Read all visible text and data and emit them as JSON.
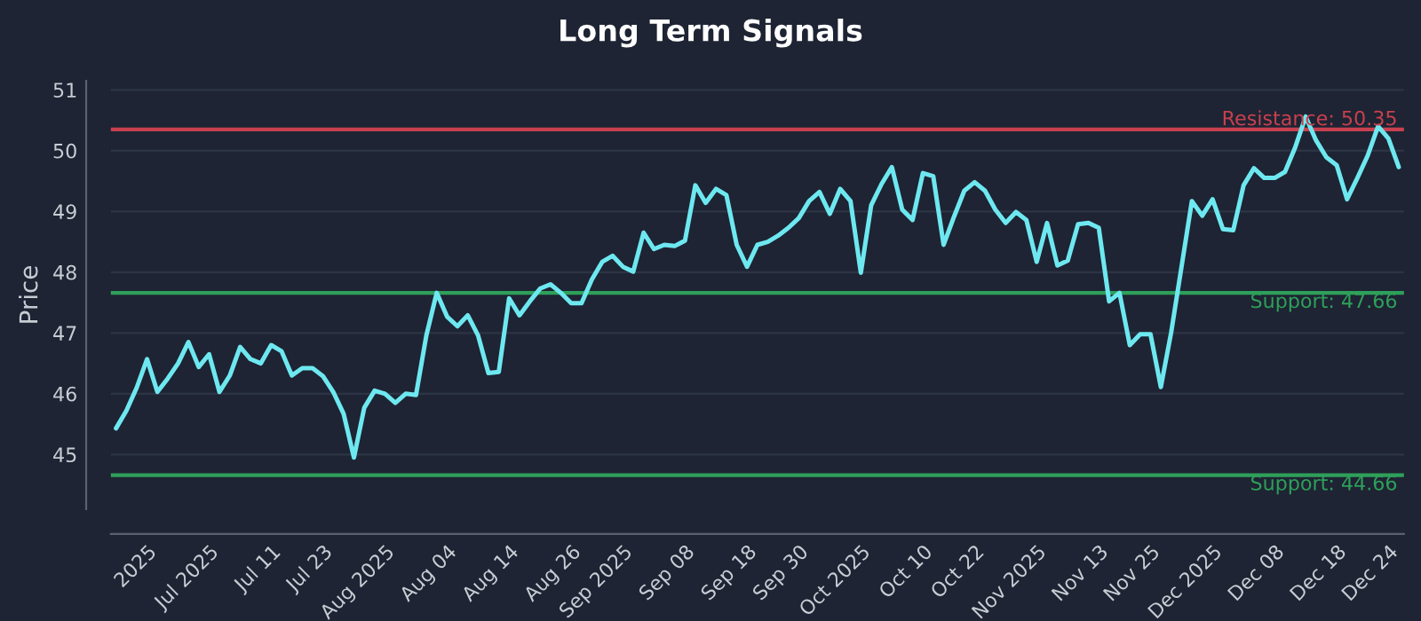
{
  "chart_data": {
    "type": "line",
    "title": "Long Term Signals",
    "ylabel": "Price",
    "categories": [
      null,
      null,
      null,
      "2025",
      null,
      null,
      null,
      null,
      null,
      "Jul 2025",
      null,
      null,
      null,
      null,
      null,
      "Jul 11",
      null,
      null,
      null,
      null,
      "Jul 23",
      null,
      null,
      null,
      null,
      null,
      "Aug 2025",
      null,
      null,
      null,
      null,
      null,
      "Aug 04",
      null,
      null,
      null,
      null,
      null,
      "Aug 14",
      null,
      null,
      null,
      null,
      null,
      "Aug 26",
      null,
      null,
      null,
      null,
      "Sep 2025",
      null,
      null,
      null,
      null,
      null,
      "Sep 08",
      null,
      null,
      null,
      null,
      null,
      "Sep 18",
      null,
      null,
      null,
      null,
      "Sep 30",
      null,
      null,
      null,
      null,
      null,
      "Oct 2025",
      null,
      null,
      null,
      null,
      null,
      "Oct 10",
      null,
      null,
      null,
      null,
      "Oct 22",
      null,
      null,
      null,
      null,
      null,
      "Nov 2025",
      null,
      null,
      null,
      null,
      null,
      "Nov 13",
      null,
      null,
      null,
      null,
      "Nov 25",
      null,
      null,
      null,
      null,
      null,
      "Dec 2025",
      null,
      null,
      null,
      null,
      null,
      "Dec 08",
      null,
      null,
      null,
      null,
      null,
      "Dec 18",
      null,
      null,
      null,
      null,
      "Dec 24",
      null
    ],
    "series": [
      {
        "color": "#6ee8f0",
        "values": [
          45.43,
          45.72,
          46.1,
          46.57,
          46.03,
          46.25,
          46.5,
          46.85,
          46.44,
          46.65,
          46.03,
          46.3,
          46.77,
          46.57,
          46.5,
          46.8,
          46.7,
          46.3,
          46.42,
          46.42,
          46.29,
          46.03,
          45.67,
          44.95,
          45.77,
          46.05,
          46.0,
          45.85,
          46.0,
          45.98,
          46.96,
          47.66,
          47.27,
          47.11,
          47.29,
          46.96,
          46.34,
          46.36,
          47.57,
          47.29,
          47.52,
          47.73,
          47.8,
          47.66,
          47.49,
          47.49,
          47.88,
          48.17,
          48.27,
          48.09,
          48.01,
          48.65,
          48.38,
          48.45,
          48.43,
          48.52,
          49.43,
          49.14,
          49.37,
          49.27,
          48.45,
          48.09,
          48.45,
          48.5,
          48.6,
          48.73,
          48.89,
          49.17,
          49.32,
          48.96,
          49.37,
          49.17,
          47.99,
          49.1,
          49.45,
          49.73,
          49.03,
          48.86,
          49.63,
          49.58,
          48.45,
          48.91,
          49.34,
          49.48,
          49.34,
          49.03,
          48.81,
          48.99,
          48.86,
          48.17,
          48.81,
          48.11,
          48.19,
          48.79,
          48.81,
          48.73,
          47.52,
          47.66,
          46.8,
          46.98,
          46.98,
          46.11,
          47.01,
          48.09,
          49.17,
          48.93,
          49.2,
          48.71,
          48.69,
          49.43,
          49.71,
          49.55,
          49.55,
          49.65,
          50.06,
          50.56,
          50.17,
          49.89,
          49.76,
          49.2,
          49.55,
          49.92,
          50.4,
          50.2,
          49.73
        ]
      }
    ],
    "ylim": [
      44.1,
      51.15
    ],
    "yticks": [
      45,
      46,
      47,
      48,
      49,
      50,
      51
    ],
    "grid": "y",
    "marker": "none",
    "line_style": "solid",
    "ref_lines": [
      {
        "axis": "y",
        "value": 50.35,
        "label": "Resistance: 50.35",
        "color": "#c8404f"
      },
      {
        "axis": "y",
        "value": 47.66,
        "label": "Support: 47.66",
        "color": "#2ea05a"
      },
      {
        "axis": "y",
        "value": 44.66,
        "label": "Support: 44.66",
        "color": "#2ea05a"
      }
    ]
  }
}
